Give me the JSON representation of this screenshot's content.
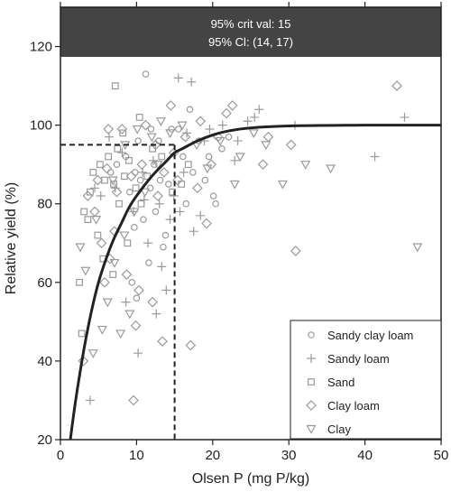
{
  "chart_data": {
    "type": "scatter",
    "title": "",
    "xlabel": "Olsen P (mg P/kg)",
    "ylabel": "Relative yield (%)",
    "xlim": [
      0,
      50
    ],
    "ylim": [
      20,
      130
    ],
    "x_ticks": [
      0,
      10,
      20,
      30,
      40,
      50
    ],
    "y_ticks": [
      20,
      40,
      60,
      80,
      100,
      120
    ],
    "grid": false,
    "legend_placement": "bottom-right",
    "header": {
      "line1": "95% crit val: 15",
      "line2": "95% Cl: (14, 17)"
    },
    "critical_value": {
      "x": 15,
      "y": 95
    },
    "fitted_curve": {
      "label": "",
      "points": [
        [
          1.3,
          20
        ],
        [
          2,
          30
        ],
        [
          3,
          42
        ],
        [
          4,
          52
        ],
        [
          5,
          60
        ],
        [
          6,
          66
        ],
        [
          7,
          71
        ],
        [
          8,
          75
        ],
        [
          9,
          79
        ],
        [
          10,
          82
        ],
        [
          12,
          87
        ],
        [
          14,
          91
        ],
        [
          15,
          93
        ],
        [
          16,
          94
        ],
        [
          18,
          96
        ],
        [
          20,
          97.5
        ],
        [
          22,
          98.5
        ],
        [
          25,
          99.3
        ],
        [
          30,
          99.8
        ],
        [
          40,
          100
        ],
        [
          50,
          100
        ]
      ]
    },
    "series": [
      {
        "name": "Sandy clay loam",
        "marker": "circle",
        "points": [
          [
            11.2,
            113
          ],
          [
            9.1,
            83
          ],
          [
            9.8,
            88
          ],
          [
            10.5,
            86
          ],
          [
            11.8,
            84
          ],
          [
            12.3,
            90
          ],
          [
            13.1,
            86
          ],
          [
            14.2,
            85
          ],
          [
            10.9,
            76
          ],
          [
            12.5,
            78
          ],
          [
            11.6,
            65
          ],
          [
            9.4,
            60
          ],
          [
            13.8,
            72
          ],
          [
            16.1,
            92
          ],
          [
            17.4,
            88
          ],
          [
            18.2,
            96
          ],
          [
            19.0,
            86
          ],
          [
            20.1,
            82
          ],
          [
            20.4,
            80
          ],
          [
            21.2,
            94
          ],
          [
            22.1,
            97
          ],
          [
            17.0,
            104
          ],
          [
            15.5,
            99
          ],
          [
            8.6,
            92
          ],
          [
            10.2,
            96
          ],
          [
            7.4,
            90
          ],
          [
            6.6,
            88
          ],
          [
            12.9,
            96
          ],
          [
            14.6,
            99
          ],
          [
            16.5,
            80
          ],
          [
            19.5,
            92
          ],
          [
            13.5,
            69
          ],
          [
            10.0,
            56
          ],
          [
            11.9,
            99
          ],
          [
            9.7,
            74
          ]
        ]
      },
      {
        "name": "Sandy loam",
        "marker": "plus",
        "points": [
          [
            15.5,
            112
          ],
          [
            17.2,
            111
          ],
          [
            3.9,
            30
          ],
          [
            10.2,
            42
          ],
          [
            8.6,
            55
          ],
          [
            12.6,
            52
          ],
          [
            13.3,
            64
          ],
          [
            11.5,
            70
          ],
          [
            13.0,
            80
          ],
          [
            14.9,
            82
          ],
          [
            15.7,
            78
          ],
          [
            17.5,
            73
          ],
          [
            18.4,
            77
          ],
          [
            16.2,
            88
          ],
          [
            16.6,
            98
          ],
          [
            18.9,
            96
          ],
          [
            19.6,
            99
          ],
          [
            21.3,
            100
          ],
          [
            23.3,
            96
          ],
          [
            24.6,
            101
          ],
          [
            25.5,
            102
          ],
          [
            26.1,
            104
          ],
          [
            30.8,
            100
          ],
          [
            41.3,
            92
          ],
          [
            45.2,
            102
          ],
          [
            22.9,
            91
          ],
          [
            6.4,
            97
          ],
          [
            7.2,
            84
          ],
          [
            9.6,
            78
          ],
          [
            10.8,
            88
          ],
          [
            12.2,
            91
          ],
          [
            14.4,
            76
          ],
          [
            13.9,
            58
          ],
          [
            5.3,
            82
          ],
          [
            4.5,
            84
          ],
          [
            8.1,
            93
          ],
          [
            11.0,
            81
          ]
        ]
      },
      {
        "name": "Sand",
        "marker": "square",
        "points": [
          [
            7.2,
            110
          ],
          [
            2.8,
            47
          ],
          [
            2.5,
            60
          ],
          [
            3.1,
            78
          ],
          [
            3.9,
            83
          ],
          [
            4.3,
            88
          ],
          [
            5.2,
            90
          ],
          [
            5.8,
            86
          ],
          [
            6.3,
            92
          ],
          [
            7.0,
            85
          ],
          [
            7.7,
            80
          ],
          [
            8.4,
            87
          ],
          [
            9.0,
            91
          ],
          [
            9.9,
            84
          ],
          [
            10.6,
            80
          ],
          [
            11.4,
            87
          ],
          [
            12.1,
            94
          ],
          [
            13.3,
            92
          ],
          [
            14.7,
            83
          ],
          [
            15.9,
            85
          ],
          [
            16.8,
            90
          ],
          [
            7.5,
            94
          ],
          [
            8.8,
            70
          ],
          [
            5.6,
            66
          ],
          [
            6.9,
            62
          ],
          [
            4.9,
            72
          ],
          [
            10.4,
            102
          ],
          [
            8.2,
            98
          ],
          [
            3.6,
            76
          ]
        ]
      },
      {
        "name": "Clay loam",
        "marker": "diamond",
        "points": [
          [
            44.2,
            110
          ],
          [
            30.9,
            68
          ],
          [
            9.6,
            30
          ],
          [
            14.5,
            105
          ],
          [
            17.1,
            44
          ],
          [
            13.4,
            45
          ],
          [
            12.1,
            55
          ],
          [
            10.3,
            58
          ],
          [
            8.7,
            62
          ],
          [
            6.5,
            66
          ],
          [
            5.4,
            70
          ],
          [
            4.5,
            78
          ],
          [
            3.6,
            82
          ],
          [
            4.9,
            86
          ],
          [
            6.1,
            89
          ],
          [
            7.4,
            83
          ],
          [
            9.3,
            87
          ],
          [
            10.7,
            90
          ],
          [
            12.5,
            95
          ],
          [
            13.6,
            88
          ],
          [
            14.9,
            93
          ],
          [
            16.4,
            97
          ],
          [
            18.4,
            101
          ],
          [
            20.7,
            97
          ],
          [
            22.6,
            105
          ],
          [
            21.8,
            103
          ],
          [
            19.8,
            90
          ],
          [
            18.0,
            84
          ],
          [
            19.2,
            75
          ],
          [
            11.2,
            100
          ],
          [
            8.1,
            99
          ],
          [
            6.3,
            99
          ],
          [
            7.1,
            73
          ],
          [
            5.8,
            60
          ],
          [
            3.0,
            40
          ],
          [
            9.9,
            49
          ],
          [
            12.8,
            82
          ],
          [
            15.4,
            86
          ],
          [
            30.3,
            95
          ],
          [
            26.6,
            90
          ],
          [
            27.3,
            97
          ]
        ]
      },
      {
        "name": "Clay",
        "marker": "triangle-down",
        "points": [
          [
            46.9,
            69
          ],
          [
            35.5,
            89
          ],
          [
            32.2,
            90
          ],
          [
            29.2,
            85
          ],
          [
            27.0,
            95
          ],
          [
            25.4,
            98
          ],
          [
            23.6,
            92
          ],
          [
            22.9,
            85
          ],
          [
            21.0,
            96
          ],
          [
            19.3,
            89
          ],
          [
            17.9,
            95
          ],
          [
            16.0,
            100
          ],
          [
            14.4,
            98
          ],
          [
            12.8,
            90
          ],
          [
            11.1,
            83
          ],
          [
            9.7,
            78
          ],
          [
            8.4,
            72
          ],
          [
            7.1,
            65
          ],
          [
            6.2,
            55
          ],
          [
            5.5,
            48
          ],
          [
            4.3,
            42
          ],
          [
            3.3,
            63
          ],
          [
            2.6,
            69
          ],
          [
            4.7,
            76
          ],
          [
            6.9,
            86
          ],
          [
            8.5,
            95
          ],
          [
            10.1,
            99
          ],
          [
            12.0,
            97
          ],
          [
            13.2,
            101
          ],
          [
            7.9,
            47
          ],
          [
            9.1,
            52
          ]
        ]
      }
    ]
  }
}
